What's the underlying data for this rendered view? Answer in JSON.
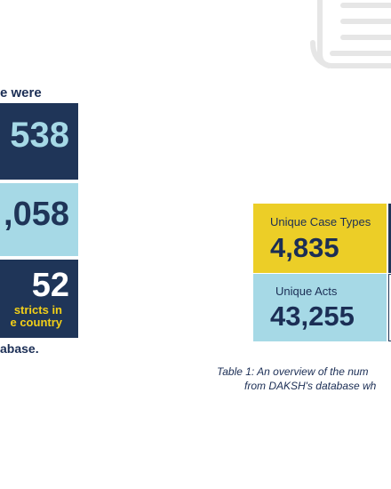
{
  "left_panel": {
    "heading": "e were",
    "stats": [
      {
        "value": "538"
      },
      {
        "value": ",058"
      },
      {
        "value": "52",
        "caption_line1": "stricts in",
        "caption_line2": "e country"
      }
    ],
    "footer": "abase."
  },
  "table": {
    "cells": [
      {
        "label": "Unique Case Types",
        "value": "4,835"
      },
      {
        "label": "Unique Acts",
        "value": "43,255"
      }
    ],
    "caption_line1": "Table 1:  An overview of the num",
    "caption_line2": "from DAKSH's database wh"
  },
  "colors": {
    "navy": "#1f3558",
    "light_blue": "#a6d9e6",
    "yellow": "#ecce27",
    "text_dark": "#1b2e55"
  },
  "icons": [
    "document-icon"
  ]
}
